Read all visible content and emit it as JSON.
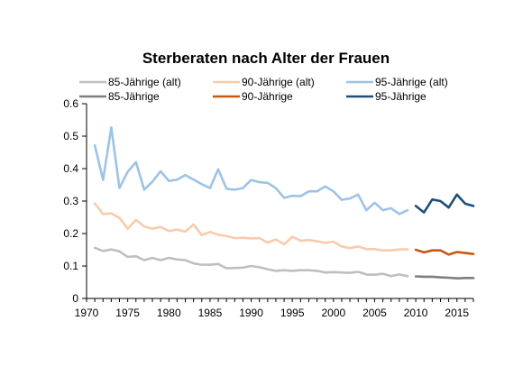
{
  "chart_data": {
    "type": "line",
    "title": "Sterberaten nach Alter der Frauen",
    "xlabel": "",
    "ylabel": "",
    "xlim": [
      1970,
      2017
    ],
    "ylim": [
      0,
      0.6
    ],
    "xticks": [
      1970,
      1975,
      1980,
      1985,
      1990,
      1995,
      2000,
      2005,
      2010,
      2015
    ],
    "yticks": [
      0,
      0.1,
      0.2,
      0.3,
      0.4,
      0.5,
      0.6
    ],
    "ytick_labels": [
      "0",
      "0.1",
      "0.2",
      "0.3",
      "0.4",
      "0.5",
      "0.6"
    ],
    "grid": false,
    "legend_position": "top",
    "series": [
      {
        "name": "85-Jährige (alt)",
        "color": "#bfbfbf",
        "x": [
          1971,
          1972,
          1973,
          1974,
          1975,
          1976,
          1977,
          1978,
          1979,
          1980,
          1981,
          1982,
          1983,
          1984,
          1985,
          1986,
          1987,
          1988,
          1989,
          1990,
          1991,
          1992,
          1993,
          1994,
          1995,
          1996,
          1997,
          1998,
          1999,
          2000,
          2001,
          2002,
          2003,
          2004,
          2005,
          2006,
          2007,
          2008,
          2009
        ],
        "y": [
          0.156,
          0.146,
          0.151,
          0.145,
          0.128,
          0.13,
          0.118,
          0.125,
          0.118,
          0.125,
          0.12,
          0.118,
          0.108,
          0.104,
          0.104,
          0.106,
          0.093,
          0.094,
          0.095,
          0.1,
          0.096,
          0.09,
          0.085,
          0.087,
          0.085,
          0.087,
          0.087,
          0.085,
          0.08,
          0.081,
          0.08,
          0.079,
          0.082,
          0.074,
          0.073,
          0.076,
          0.069,
          0.074,
          0.069
        ]
      },
      {
        "name": "90-Jährige (alt)",
        "color": "#f8cbad",
        "x": [
          1971,
          1972,
          1973,
          1974,
          1975,
          1976,
          1977,
          1978,
          1979,
          1980,
          1981,
          1982,
          1983,
          1984,
          1985,
          1986,
          1987,
          1988,
          1989,
          1990,
          1991,
          1992,
          1993,
          1994,
          1995,
          1996,
          1997,
          1998,
          1999,
          2000,
          2001,
          2002,
          2003,
          2004,
          2005,
          2006,
          2007,
          2008,
          2009
        ],
        "y": [
          0.293,
          0.26,
          0.262,
          0.248,
          0.215,
          0.242,
          0.222,
          0.215,
          0.22,
          0.208,
          0.212,
          0.206,
          0.228,
          0.195,
          0.205,
          0.196,
          0.192,
          0.186,
          0.187,
          0.185,
          0.186,
          0.172,
          0.182,
          0.167,
          0.19,
          0.178,
          0.18,
          0.176,
          0.171,
          0.175,
          0.16,
          0.155,
          0.16,
          0.152,
          0.152,
          0.148,
          0.148,
          0.151,
          0.151
        ]
      },
      {
        "name": "95-Jährige (alt)",
        "color": "#9dc3e6",
        "x": [
          1971,
          1972,
          1973,
          1974,
          1975,
          1976,
          1977,
          1978,
          1979,
          1980,
          1981,
          1982,
          1983,
          1984,
          1985,
          1986,
          1987,
          1988,
          1989,
          1990,
          1991,
          1992,
          1993,
          1994,
          1995,
          1996,
          1997,
          1998,
          1999,
          2000,
          2001,
          2002,
          2003,
          2004,
          2005,
          2006,
          2007,
          2008,
          2009
        ],
        "y": [
          0.472,
          0.365,
          0.527,
          0.34,
          0.39,
          0.42,
          0.335,
          0.36,
          0.392,
          0.362,
          0.366,
          0.38,
          0.366,
          0.352,
          0.34,
          0.398,
          0.338,
          0.335,
          0.34,
          0.365,
          0.358,
          0.356,
          0.34,
          0.31,
          0.316,
          0.315,
          0.33,
          0.33,
          0.345,
          0.33,
          0.304,
          0.308,
          0.32,
          0.272,
          0.295,
          0.272,
          0.278,
          0.26,
          0.272
        ]
      },
      {
        "name": "85-Jährige",
        "color": "#7f7f7f",
        "x": [
          2010,
          2011,
          2012,
          2013,
          2014,
          2015,
          2016,
          2017
        ],
        "y": [
          0.068,
          0.067,
          0.067,
          0.065,
          0.064,
          0.062,
          0.063,
          0.063
        ]
      },
      {
        "name": "90-Jährige",
        "color": "#c55a11",
        "x": [
          2010,
          2011,
          2012,
          2013,
          2014,
          2015,
          2016,
          2017
        ],
        "y": [
          0.15,
          0.142,
          0.148,
          0.148,
          0.135,
          0.143,
          0.14,
          0.137
        ]
      },
      {
        "name": "95-Jährige",
        "color": "#1f4e79",
        "x": [
          2010,
          2011,
          2012,
          2013,
          2014,
          2015,
          2016,
          2017
        ],
        "y": [
          0.285,
          0.265,
          0.305,
          0.3,
          0.28,
          0.32,
          0.292,
          0.285
        ]
      }
    ]
  }
}
